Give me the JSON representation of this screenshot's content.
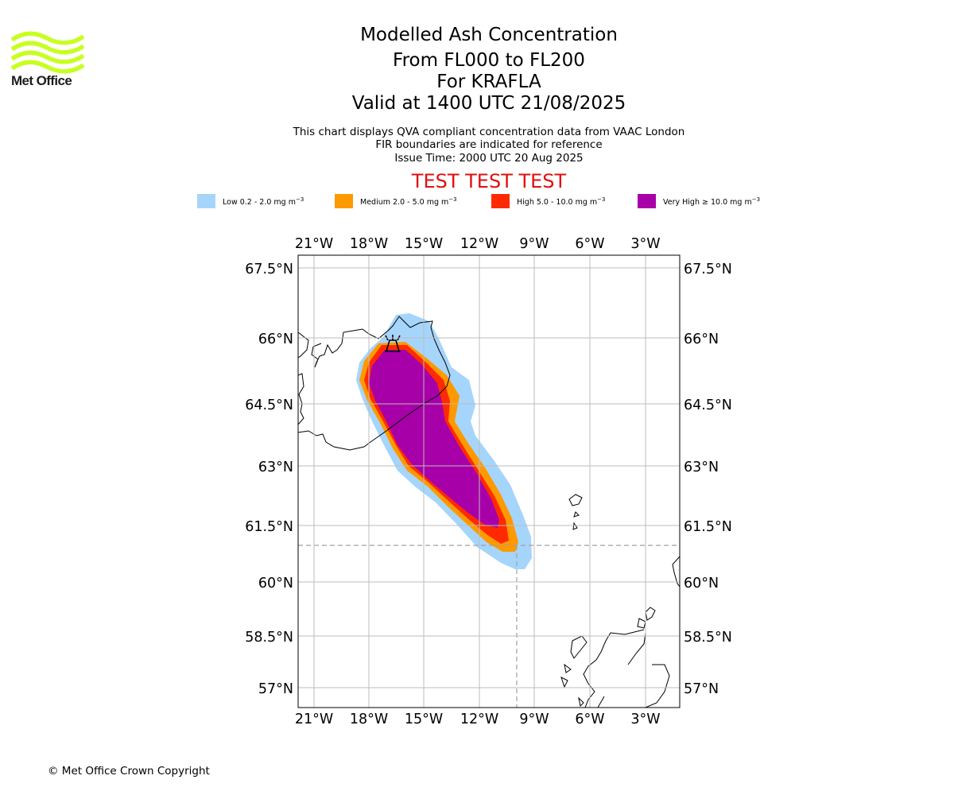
{
  "logo": {
    "text": "Met Office",
    "icon": "met-office-wave-logo",
    "color": "#c7ff1e"
  },
  "header": {
    "title": "Modelled Ash Concentration",
    "levels": "From FL000 to FL200",
    "volcano": "For KRAFLA",
    "valid": "Valid at 1400 UTC 21/08/2025",
    "note1": "This chart displays QVA compliant concentration data from VAAC London",
    "note2": "FIR boundaries are indicated for reference",
    "issue": "Issue Time: 2000 UTC 20 Aug 2025",
    "test_banner": "TEST TEST TEST"
  },
  "legend": [
    {
      "label": "Low 0.2 - 2.0 mg m",
      "color": "#a6d5fb"
    },
    {
      "label": "Medium 2.0 - 5.0 mg m",
      "color": "#ff9900"
    },
    {
      "label": "High 5.0 - 10.0 mg m",
      "color": "#ff2a00"
    },
    {
      "label": "Very High ≥ 10.0 mg m",
      "color": "#a800a8"
    }
  ],
  "legend_unit_exponent": "−3",
  "map": {
    "lon_ticks": [
      "21°W",
      "18°W",
      "15°W",
      "12°W",
      "9°W",
      "6°W",
      "3°W"
    ],
    "lat_ticks": [
      "67.5°N",
      "66°N",
      "64.5°N",
      "63°N",
      "61.5°N",
      "60°N",
      "58.5°N",
      "57°N"
    ],
    "volcano_icon": "volcano-symbol-icon"
  },
  "footer": {
    "copyright": "© Met Office Crown Copyright"
  }
}
